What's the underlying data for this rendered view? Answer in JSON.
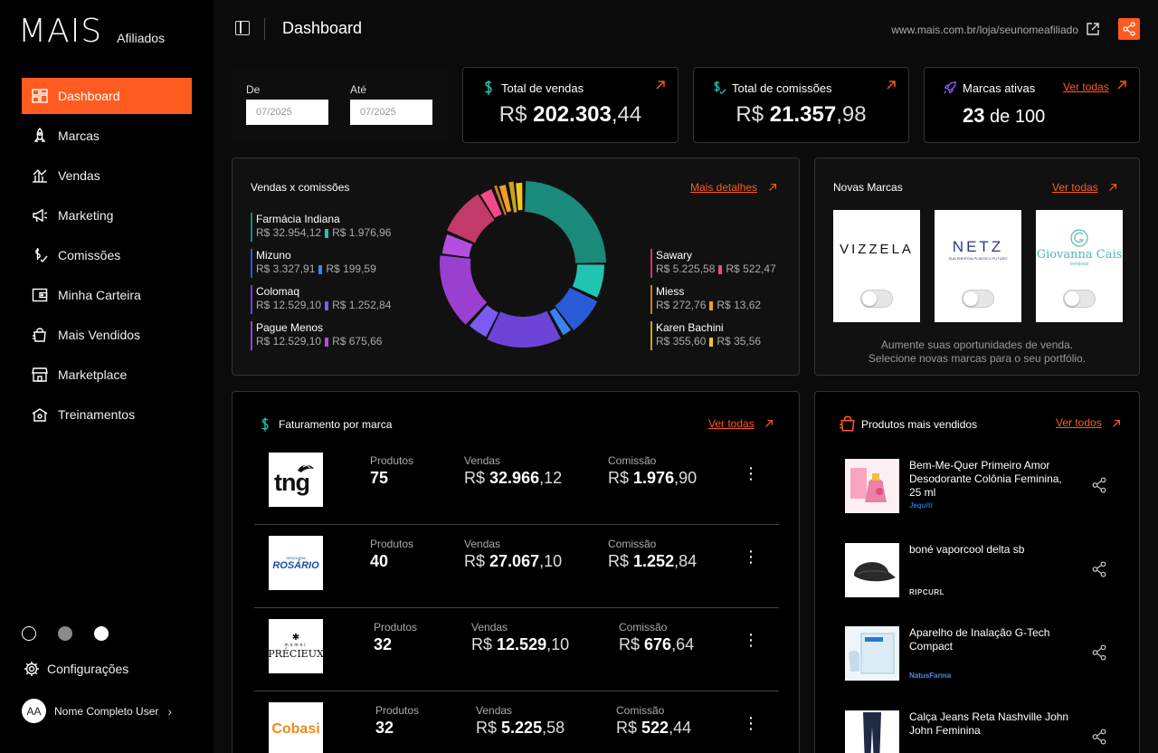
{
  "sidebar": {
    "logo": "MAIS",
    "logo_sub": "Afiliados",
    "items": [
      {
        "label": "Dashboard",
        "icon": "dashboard-icon",
        "active": true
      },
      {
        "label": "Marcas",
        "icon": "rocket-icon"
      },
      {
        "label": "Vendas",
        "icon": "chart-icon"
      },
      {
        "label": "Marketing",
        "icon": "megaphone-icon"
      },
      {
        "label": "Comissões",
        "icon": "dollar-check-icon"
      },
      {
        "label": "Minha Carteira",
        "icon": "wallet-icon"
      },
      {
        "label": "Mais Vendidos",
        "icon": "shopping-bag-icon"
      },
      {
        "label": "Marketplace",
        "icon": "store-icon"
      },
      {
        "label": "Treinamentos",
        "icon": "training-icon"
      }
    ],
    "themes": [
      "#000000",
      "#8a8a8a",
      "#ffffff"
    ],
    "config_label": "Configurações",
    "user_initials": "AA",
    "user_name": "Nome Completo User"
  },
  "header": {
    "title": "Dashboard",
    "store_url": "www.mais.com.br/loja/seunomeafiliado"
  },
  "filters": {
    "from_label": "De",
    "from_value": "07/2025",
    "to_label": "Até",
    "to_value": "07/2025"
  },
  "stats": {
    "sales": {
      "title": "Total de vendas",
      "prefix": "R$",
      "integer": "202.303",
      "decimals": ",44"
    },
    "commissions": {
      "title": "Total de comissões",
      "prefix": "R$",
      "integer": "21.357",
      "decimals": ",98"
    },
    "brands": {
      "title": "Marcas ativas",
      "link": "Ver todas",
      "active": "23",
      "of_text": "de 100"
    }
  },
  "sales_chart": {
    "title": "Vendas x comissões",
    "link": "Mais detalhes"
  },
  "chart_data": {
    "type": "pie",
    "title": "Vendas x comissões",
    "series": [
      {
        "name": "Farmácia Indiana",
        "sales": "R$ 32.954,12",
        "commission": "R$ 1.976,96",
        "value": 32954.12,
        "commission_value": 1976.96,
        "color": "#1a8a7a",
        "commission_color": "#20c4b0"
      },
      {
        "name": "Mizuno",
        "sales": "R$ 3.327,91",
        "commission": "R$ 199,59",
        "value": 3327.91,
        "commission_value": 199.59,
        "color": "#2a5bd7",
        "commission_color": "#3b82f6"
      },
      {
        "name": "Colomaq",
        "sales": "R$ 12.529,10",
        "commission": "R$ 1.252,84",
        "value": 12529.1,
        "commission_value": 1252.84,
        "color": "#6d43d8",
        "commission_color": "#7c5cf0"
      },
      {
        "name": "Pague Menos",
        "sales": "R$ 12.529,10",
        "commission": "R$ 675,66",
        "value": 12529.1,
        "commission_value": 675.66,
        "color": "#9b3fd0",
        "commission_color": "#b34ee0"
      },
      {
        "name": "Sawary",
        "sales": "R$ 5.225,58",
        "commission": "R$ 522,47",
        "value": 5225.58,
        "commission_value": 522.47,
        "color": "#c23a6a",
        "commission_color": "#f04a8a"
      },
      {
        "name": "Miess",
        "sales": "R$ 272,76",
        "commission": "R$ 13,62",
        "value": 272.76,
        "commission_value": 13.62,
        "color": "#c9801a",
        "commission_color": "#f0a020"
      },
      {
        "name": "Karen Bachini",
        "sales": "R$ 355,60",
        "commission": "R$ 35,56",
        "value": 355.6,
        "commission_value": 35.56,
        "color": "#c9a21a",
        "commission_color": "#f0c820"
      }
    ]
  },
  "new_brands": {
    "title": "Novas Marcas",
    "link": "Ver todas",
    "brands": [
      {
        "name": "VIZZELA",
        "color": "#111111"
      },
      {
        "name": "NETZ",
        "tagline": "SUA ENERGIA PLANTA O FUTURO",
        "color": "#2a3a8a"
      },
      {
        "name": "Giovanna Cais",
        "tagline": "semijoias",
        "color": "#4fb8b0"
      }
    ],
    "footer_line1": "Aumente suas oportunidades de venda.",
    "footer_line2": "Selecione novas marcas para o seu portfólio."
  },
  "billing": {
    "title": "Faturamento por marca",
    "link": "Ver todas",
    "label_products": "Produtos",
    "label_sales": "Vendas",
    "label_commission": "Comissão",
    "rows": [
      {
        "brand": "tng",
        "products": "75",
        "sales_int": "32.966",
        "sales_dec": ",12",
        "comm_int": "1.976",
        "comm_dec": ",90"
      },
      {
        "brand": "ROSÁRIO",
        "brand_top": "DROGARIA",
        "products": "40",
        "sales_int": "27.067",
        "sales_dec": ",10",
        "comm_int": "1.252",
        "comm_dec": ",84"
      },
      {
        "brand": "PRÉCIEUX",
        "brand_top": "momoi",
        "products": "32",
        "sales_int": "12.529",
        "sales_dec": ",10",
        "comm_int": "676",
        "comm_dec": ",64"
      },
      {
        "brand": "Cobasi",
        "products": "32",
        "sales_int": "5.225",
        "sales_dec": ",58",
        "comm_int": "522",
        "comm_dec": ",44"
      }
    ],
    "currency": "R$"
  },
  "best_sellers": {
    "title": "Produtos mais vendidos",
    "link": "Ver todos",
    "items": [
      {
        "name": "Bem-Me-Quer Primeiro Amor Desodorante Colônia Feminina, 25 ml",
        "brand": "Jequiti",
        "brand_color": "#1a6fc9"
      },
      {
        "name": "boné vaporcool delta sb",
        "brand": "RIPCURL",
        "brand_color": "#222222"
      },
      {
        "name": "Aparelho de Inalação G-Tech Compact",
        "brand": "NatusFarma",
        "brand_color": "#d42a2a"
      },
      {
        "name": "Calça Jeans Reta Nashville John John Feminina",
        "brand": "",
        "brand_color": "#222222"
      }
    ]
  }
}
